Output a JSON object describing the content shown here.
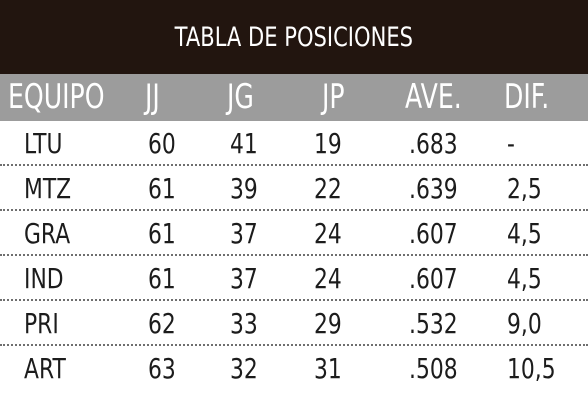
{
  "title": "TABLA DE POSICIONES",
  "columns": [
    "EQUIPO",
    "JJ",
    "JG",
    "JP",
    "AVE.",
    "DIF."
  ],
  "rows": [
    [
      "LTU",
      "60",
      "41",
      "19",
      ".683",
      "-"
    ],
    [
      "MTZ",
      "61",
      "39",
      "22",
      ".639",
      "2,5"
    ],
    [
      "GRA",
      "61",
      "37",
      "24",
      ".607",
      "4,5"
    ],
    [
      "IND",
      "61",
      "37",
      "24",
      ".607",
      "4,5"
    ],
    [
      "PRI",
      "62",
      "33",
      "29",
      ".532",
      "9,0"
    ],
    [
      "ART",
      "63",
      "32",
      "31",
      ".508",
      "10,5"
    ]
  ],
  "colors": {
    "title_bg": "#22150f",
    "header_bg": "#9c9c9c",
    "header_text": "#ffffff",
    "body_text": "#1c1c1c"
  }
}
